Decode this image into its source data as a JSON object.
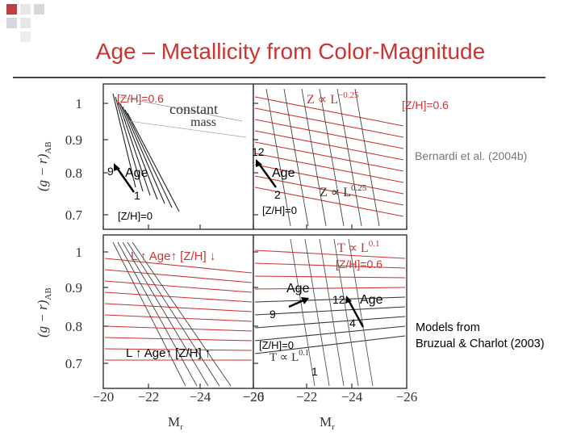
{
  "slide": {
    "title": "Age – Metallicity from Color-Magnitude",
    "accent_color": "#cc3333",
    "models_line1": "Models from",
    "models_line2": "Bruzual & Charlot (2003)",
    "citation": "Bernardi et al. (2004b)"
  },
  "chart_data": {
    "type": "line",
    "layout": "2x2 grid of color-magnitude model panels",
    "xlabel": "M",
    "xlabel_sub": "r",
    "ylabel": "(g − r)",
    "ylabel_sub": "AB",
    "x_ticks": [
      "−20",
      "−22",
      "−24",
      "−26"
    ],
    "y_ticks": [
      "1",
      "0.9",
      "0.8",
      "0.7"
    ],
    "xlim": [
      -19.5,
      -26.5
    ],
    "ylim": [
      0.65,
      1.07
    ],
    "grid": false,
    "panels": [
      {
        "name": "top-left",
        "header_text": "constant",
        "header_text2": "mass",
        "annotations": {
          "zh_top": "[Z/H]=0.6",
          "age_num": "9",
          "age_label": "Age",
          "num_bottom": "1",
          "zh_bottom": "[Z/H]=0"
        }
      },
      {
        "name": "top-right",
        "header_text": "Z ∝ L",
        "header_exp": "−0.25",
        "lower_text": "Z ∝ L",
        "lower_exp": "0.25",
        "annotations": {
          "zh_top": "[Z/H]=0.6",
          "age_num": "12",
          "age_label": "Age",
          "num_bottom": "2",
          "zh_bottom": "[Z/H]=0"
        }
      },
      {
        "name": "bottom-left",
        "annotations": {
          "top_text": "L ↑ Age↑ [Z/H] ↓",
          "bottom_text": "L ↑ Age↑ [Z/H] ↑"
        }
      },
      {
        "name": "bottom-right",
        "header_text": "T ∝ L",
        "header_exp": "0.1",
        "lower_text": "T ∝ L",
        "lower_exp": "0.1",
        "annotations": {
          "zh_top": "[Z/H]=0.6",
          "age_label_a": "Age",
          "age_num_a": "9",
          "age_num_b": "12",
          "age_label_b": "Age",
          "num_mid": "4",
          "zh_bottom": "[Z/H]=0",
          "num_bottom": "1"
        }
      }
    ]
  }
}
